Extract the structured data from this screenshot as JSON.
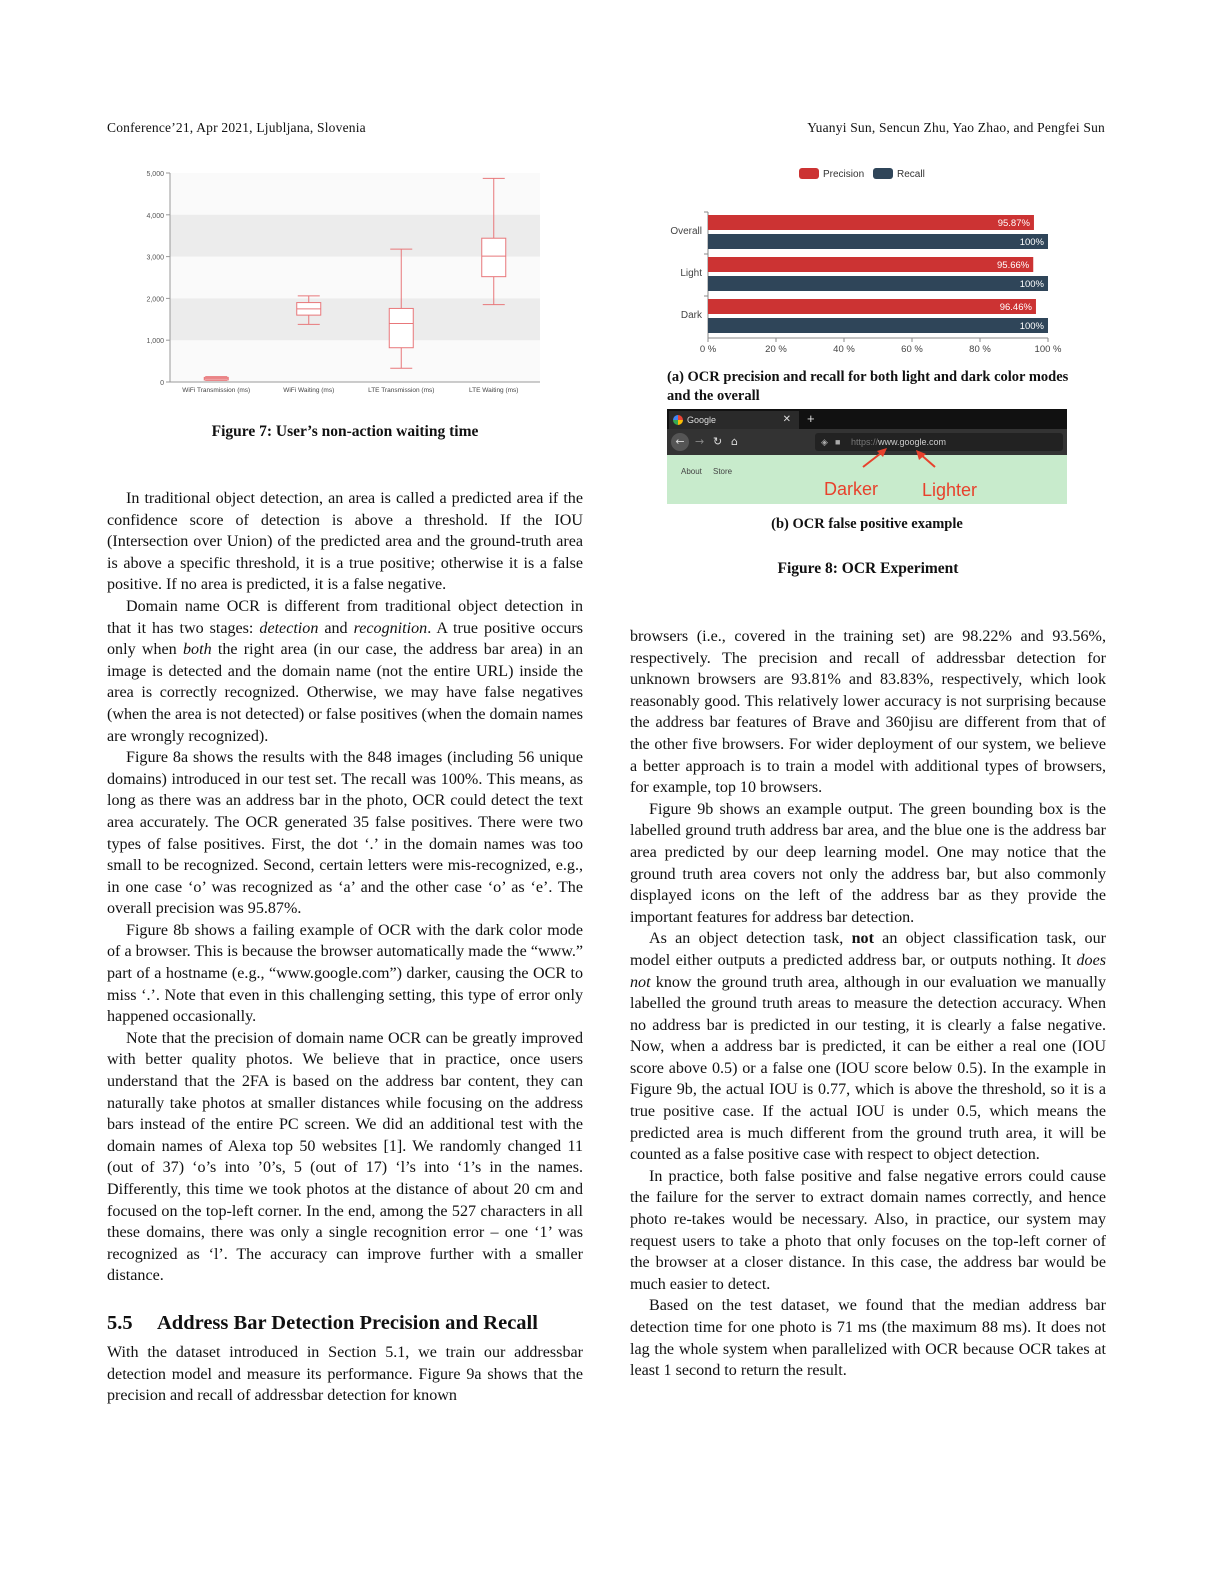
{
  "header": {
    "left": "Conference’21, Apr 2021, Ljubljana, Slovenia",
    "right": "Yuanyi Sun, Sencun Zhu, Yao Zhao, and Pengfei Sun"
  },
  "figure7": {
    "caption": "Figure 7: User’s non-action waiting time",
    "chart_data": {
      "type": "box",
      "categories": [
        "WiFi Transmission (ms)",
        "WiFi Waiting (ms)",
        "LTE Transmission (ms)",
        "LTE Waiting (ms)"
      ],
      "ylim": [
        0,
        5000
      ],
      "yticks": [
        "0",
        "1,000",
        "2,000",
        "3,000",
        "4,000",
        "5,000"
      ],
      "boxes": [
        {
          "min": 40,
          "q1": 50,
          "median": 80,
          "q3": 110,
          "max": 130
        },
        {
          "min": 1380,
          "q1": 1600,
          "median": 1750,
          "q3": 1900,
          "max": 2060
        },
        {
          "min": 330,
          "q1": 820,
          "median": 1400,
          "q3": 1760,
          "max": 3180
        },
        {
          "min": 1850,
          "q1": 2520,
          "median": 3010,
          "q3": 3440,
          "max": 4870
        }
      ],
      "grid": "alternating bands",
      "color": "#e8777a"
    }
  },
  "figure8": {
    "caption": "Figure 8: OCR Experiment",
    "sub_a_caption": "(a) OCR precision and recall for both light and dark color modes and the overall",
    "sub_b_caption": "(b) OCR false positive example",
    "chart_data": {
      "type": "bar",
      "orientation": "horizontal",
      "categories": [
        "Overall",
        "Light",
        "Dark"
      ],
      "series": [
        {
          "name": "Precision",
          "values": [
            95.87,
            95.66,
            96.46
          ],
          "labels": [
            "95.87%",
            "95.66%",
            "96.46%"
          ],
          "color": "#cc3333"
        },
        {
          "name": "Recall",
          "values": [
            100,
            100,
            100
          ],
          "labels": [
            "100%",
            "100%",
            "100%"
          ],
          "color": "#2f4559"
        }
      ],
      "xlim": [
        0,
        100
      ],
      "xticks": [
        "0 %",
        "20 %",
        "40 %",
        "60 %",
        "80 %",
        "100 %"
      ],
      "legend": "top"
    },
    "browser_example": {
      "tab_title": "Google",
      "url_dim": "https://",
      "url_bright": "www.google.com",
      "links": [
        "About",
        "Store"
      ],
      "label_darker": "Darker",
      "label_lighter": "Lighter",
      "page_color": "#c8ebcc",
      "annotation_color": "#e8412c"
    }
  },
  "left_column": {
    "p1": "In traditional object detection, an area is called a predicted area if the confidence score of detection is above a threshold. If the IOU (Intersection over Union) of the predicted area and the ground-truth area is above a specific threshold, it is a true positive; otherwise it is a false positive. If no area is predicted, it is a false negative.",
    "p2_a": "Domain name OCR is different from traditional object detection in that it has two stages: ",
    "p2_em1": "detection",
    "p2_b": " and ",
    "p2_em2": "recognition",
    "p2_c": ". A true positive occurs only when ",
    "p2_em3": "both",
    "p2_d": " the right area (in our case, the address bar area) in an image is detected and the domain name (not the entire URL) inside the area is correctly recognized. Otherwise, we may have false negatives (when the area is not detected) or false positives (when the domain names are wrongly recognized).",
    "p3": "Figure 8a shows the results with the 848 images (including 56 unique domains) introduced in our test set. The recall was 100%. This means, as long as there was an address bar in the photo, OCR could detect the text area accurately. The OCR generated 35 false positives. There were two types of false positives. First, the dot ‘.’ in the domain names was too small to be recognized. Second, certain letters were mis-recognized, e.g., in one case ‘o’ was recognized as ‘a’ and the other case ‘o’ as ‘e’. The overall precision was 95.87%.",
    "p4": "Figure 8b shows a failing example of OCR with the dark color mode of a browser. This is because the browser automatically made the “www.” part of a hostname (e.g., “www.google.com”) darker, causing the OCR to miss ‘.’. Note that even in this challenging setting, this type of error only happened occasionally.",
    "p5": "Note that the precision of domain name OCR can be greatly improved with better quality photos. We believe that in practice, once users understand that the 2FA is based on the address bar content, they can naturally take photos at smaller distances while focusing on the address bars instead of the entire PC screen. We did an additional test with the domain names of Alexa top 50 websites [1]. We randomly changed 11 (out of 37) ‘o’s into ’0’s, 5 (out of 17) ‘l’s into ‘1’s in the names. Differently, this time we took photos at the distance of about 20 cm and focused on the top-left corner. In the end, among the 527 characters in all these domains, there was only a single recognition error – one ‘1’ was recognized as ‘l’. The accuracy can improve further with a smaller distance.",
    "section_number": "5.5",
    "section_title": "Address Bar Detection Precision and Recall",
    "p6": "With the dataset introduced in Section 5.1, we train our addressbar detection model and measure its performance. Figure 9a shows that the precision and recall of addressbar detection for known"
  },
  "right_column": {
    "p1": "browsers (i.e., covered in the training set) are 98.22% and 93.56%, respectively. The precision and recall of addressbar detection for unknown browsers are 93.81% and 83.83%, respectively, which look reasonably good. This relatively lower accuracy is not surprising because the address bar features of Brave and 360jisu are different from that of the other five browsers. For wider deployment of our system, we believe a better approach is to train a model with additional types of browsers, for example, top 10 browsers.",
    "p2": "Figure 9b shows an example output. The green bounding box is the labelled ground truth address bar area, and the blue one is the address bar area predicted by our deep learning model. One may notice that the ground truth area covers not only the address bar, but also commonly displayed icons on the left of the address bar as they provide the important features for address bar detection.",
    "p3_a": "As an object detection task, ",
    "p3_strong": "not",
    "p3_b": " an object classification task, our model either outputs a predicted address bar, or outputs nothing. It ",
    "p3_em": "does not",
    "p3_c": " know the ground truth area, although in our evaluation we manually labelled the ground truth areas to measure the detection accuracy. When no address bar is predicted in our testing, it is clearly a false negative. Now, when a address bar is predicted, it can be either a real one (IOU score above 0.5) or a false one (IOU score below 0.5). In the example in Figure 9b, the actual IOU is 0.77, which is above the threshold, so it is a true positive case. If the actual IOU is under 0.5, which means the predicted area is much different from the ground truth area, it will be counted as a false positive case with respect to object detection.",
    "p4": "In practice, both false positive and false negative errors could cause the failure for the server to extract domain names correctly, and hence photo re-takes would be necessary. Also, in practice, our system may request users to take a photo that only focuses on the top-left corner of the browser at a closer distance. In this case, the address bar would be much easier to detect.",
    "p5": "Based on the test dataset, we found that the median address bar detection time for one photo is 71 ms (the maximum 88 ms). It does not lag the whole system when parallelized with OCR because OCR takes at least 1 second to return the result."
  }
}
